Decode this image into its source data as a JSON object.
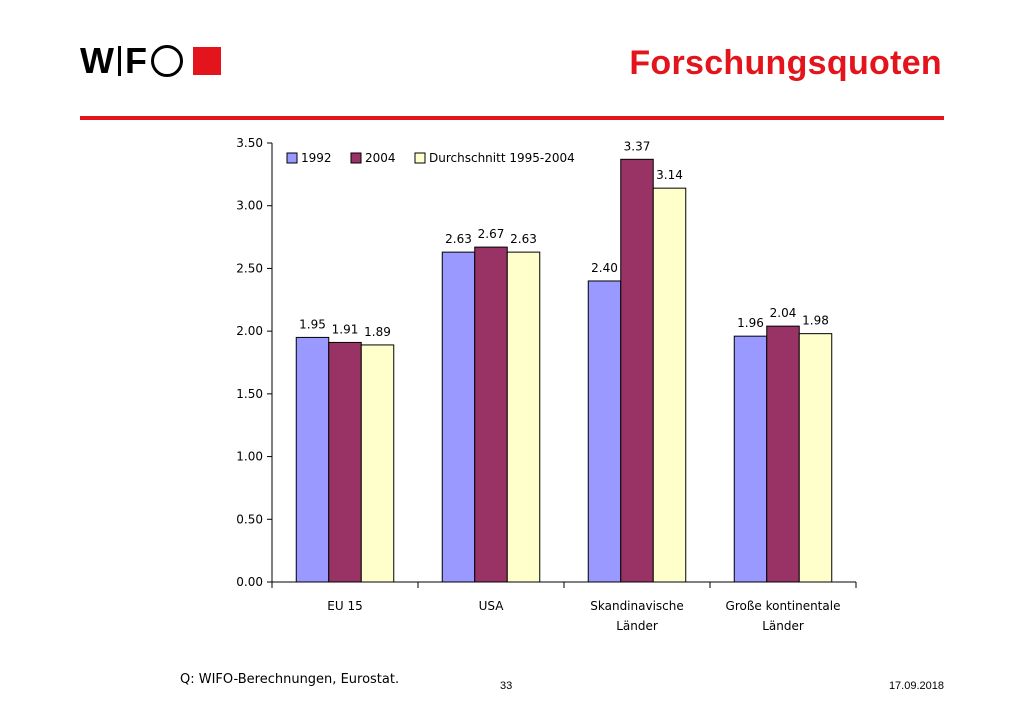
{
  "header": {
    "logo_text": [
      "W",
      "I",
      "F",
      "O"
    ],
    "title": "Forschungsquoten"
  },
  "colors": {
    "accent": "#e3141b",
    "series": [
      "#9999ff",
      "#993366",
      "#ffffcc"
    ],
    "bar_outline": "#000000"
  },
  "chart_data": {
    "type": "bar",
    "title": "",
    "xlabel": "",
    "ylabel": "",
    "ylim": [
      0,
      3.5
    ],
    "yticks": [
      "0.00",
      "0.50",
      "1.00",
      "1.50",
      "2.00",
      "2.50",
      "3.00",
      "3.50"
    ],
    "grid": false,
    "legend_position": "top-left",
    "categories": [
      [
        "EU 15"
      ],
      [
        "USA"
      ],
      [
        "Skandinavische",
        "Länder"
      ],
      [
        "Große kontinentale",
        "Länder"
      ]
    ],
    "series": [
      {
        "name": "1992",
        "values": [
          1.95,
          2.63,
          2.4,
          1.96
        ],
        "labels": [
          "1.95",
          "2.63",
          "2.40",
          "1.96"
        ]
      },
      {
        "name": "2004",
        "values": [
          1.91,
          2.67,
          3.37,
          2.04
        ],
        "labels": [
          "1.91",
          "2.67",
          "3.37",
          "2.04"
        ]
      },
      {
        "name": "Durchschnitt 1995-2004",
        "values": [
          1.89,
          2.63,
          3.14,
          1.98
        ],
        "labels": [
          "1.89",
          "2.63",
          "3.14",
          "1.98"
        ]
      }
    ]
  },
  "footer": {
    "source": "Q: WIFO-Berechnungen, Eurostat.",
    "page": "33",
    "date": "17.09.2018"
  }
}
